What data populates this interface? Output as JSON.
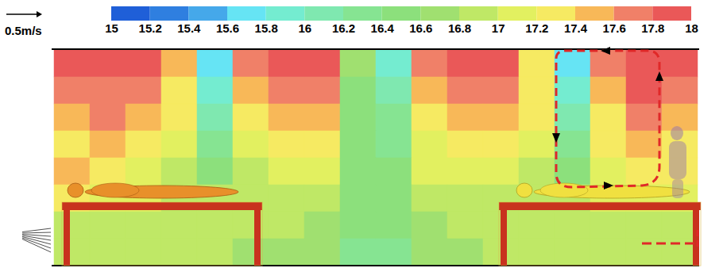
{
  "chart_data": {
    "type": "heatmap",
    "vector_scale_label": "0.5m/s",
    "tick_labels": false,
    "cells": [
      [
        17.8,
        17.8,
        17.8,
        17.4,
        15.6,
        17.6,
        17.8,
        17.8,
        16.6,
        15.8,
        17.6,
        17.8,
        17.8,
        17.2,
        15.6,
        17.6,
        17.8,
        17.8
      ],
      [
        17.6,
        17.6,
        17.6,
        17.2,
        15.8,
        17.4,
        17.6,
        17.6,
        16.4,
        16.0,
        17.4,
        17.6,
        17.6,
        17.2,
        15.8,
        17.4,
        17.8,
        17.6
      ],
      [
        17.4,
        17.6,
        17.4,
        17.2,
        16.0,
        17.2,
        17.4,
        17.4,
        16.4,
        16.2,
        17.2,
        17.4,
        17.4,
        17.2,
        16.0,
        17.2,
        17.6,
        17.4
      ],
      [
        17.2,
        17.4,
        17.2,
        17.0,
        16.2,
        17.0,
        17.2,
        17.2,
        16.4,
        16.2,
        17.0,
        17.2,
        17.2,
        17.0,
        16.2,
        17.2,
        17.4,
        17.2
      ],
      [
        17.4,
        17.2,
        17.0,
        16.8,
        16.4,
        16.8,
        17.0,
        17.0,
        16.4,
        16.4,
        17.0,
        17.0,
        17.0,
        16.8,
        16.4,
        17.0,
        17.2,
        17.2
      ],
      [
        17.2,
        17.0,
        17.0,
        16.8,
        16.8,
        16.8,
        16.8,
        16.8,
        16.4,
        16.4,
        16.8,
        16.8,
        16.8,
        16.8,
        16.8,
        17.0,
        17.0,
        17.0
      ],
      [
        16.8,
        16.8,
        16.8,
        16.8,
        16.8,
        16.8,
        16.8,
        16.6,
        16.4,
        16.4,
        16.6,
        16.8,
        16.8,
        16.8,
        16.8,
        16.8,
        16.8,
        16.8
      ],
      [
        16.8,
        16.8,
        16.8,
        16.8,
        16.8,
        16.6,
        16.6,
        16.6,
        16.2,
        16.2,
        16.6,
        16.6,
        16.8,
        16.8,
        16.8,
        16.8,
        16.8,
        16.8
      ]
    ],
    "colorbar": {
      "range": [
        15,
        18
      ],
      "ticks": [
        15,
        15.2,
        15.4,
        15.6,
        15.8,
        16,
        16.2,
        16.4,
        16.6,
        16.8,
        17,
        17.2,
        17.4,
        17.6,
        17.8,
        18
      ],
      "colors": [
        "#1f5fd8",
        "#2f7fe0",
        "#45a8ea",
        "#66e4f4",
        "#74ecd0",
        "#7fe8b0",
        "#86e492",
        "#8ce07c",
        "#a0e070",
        "#bfe866",
        "#e2f060",
        "#f6ea62",
        "#f8b858",
        "#f08068",
        "#ea5858"
      ]
    }
  }
}
